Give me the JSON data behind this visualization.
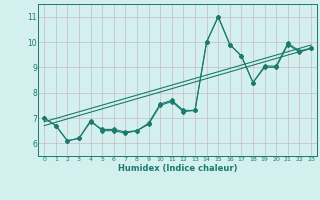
{
  "title": "",
  "xlabel": "Humidex (Indice chaleur)",
  "x_ticks": [
    0,
    1,
    2,
    3,
    4,
    5,
    6,
    7,
    8,
    9,
    10,
    11,
    12,
    13,
    14,
    15,
    16,
    17,
    18,
    19,
    20,
    21,
    22,
    23
  ],
  "x_tick_labels": [
    "0",
    "1",
    "2",
    "3",
    "4",
    "5",
    "6",
    "7",
    "8",
    "9",
    "10",
    "11",
    "12",
    "13",
    "14",
    "15",
    "16",
    "17",
    "18",
    "19",
    "20",
    "21",
    "22",
    "23"
  ],
  "ylim": [
    5.5,
    11.5
  ],
  "xlim": [
    -0.5,
    23.5
  ],
  "yticks": [
    6,
    7,
    8,
    9,
    10,
    11
  ],
  "ytick_labels": [
    "6",
    "7",
    "8",
    "9",
    "10",
    "11"
  ],
  "line_color": "#1a7a6e",
  "bg_color": "#d4f0ee",
  "grid_color": "#c8b8cc",
  "line1_y": [
    7.0,
    6.7,
    6.1,
    6.2,
    6.9,
    6.5,
    6.5,
    6.4,
    6.5,
    6.75,
    7.5,
    7.65,
    7.25,
    7.3,
    10.0,
    11.0,
    9.9,
    9.45,
    8.4,
    9.0,
    9.0,
    9.9,
    9.6,
    9.75
  ],
  "line2_y": [
    7.0,
    6.7,
    6.1,
    6.2,
    6.85,
    6.55,
    6.55,
    6.45,
    6.5,
    6.8,
    7.55,
    7.7,
    7.3,
    7.3,
    10.0,
    11.0,
    9.9,
    9.45,
    8.4,
    9.05,
    9.05,
    9.95,
    9.65,
    9.75
  ],
  "trend1_x": [
    0,
    23
  ],
  "trend1_y": [
    6.7,
    9.75
  ],
  "trend2_x": [
    0,
    23
  ],
  "trend2_y": [
    6.85,
    9.88
  ],
  "marker": "D",
  "markersize": 2.0,
  "linewidth": 0.8,
  "xlabel_fontsize": 6.0,
  "xtick_fontsize": 4.5,
  "ytick_fontsize": 5.5
}
